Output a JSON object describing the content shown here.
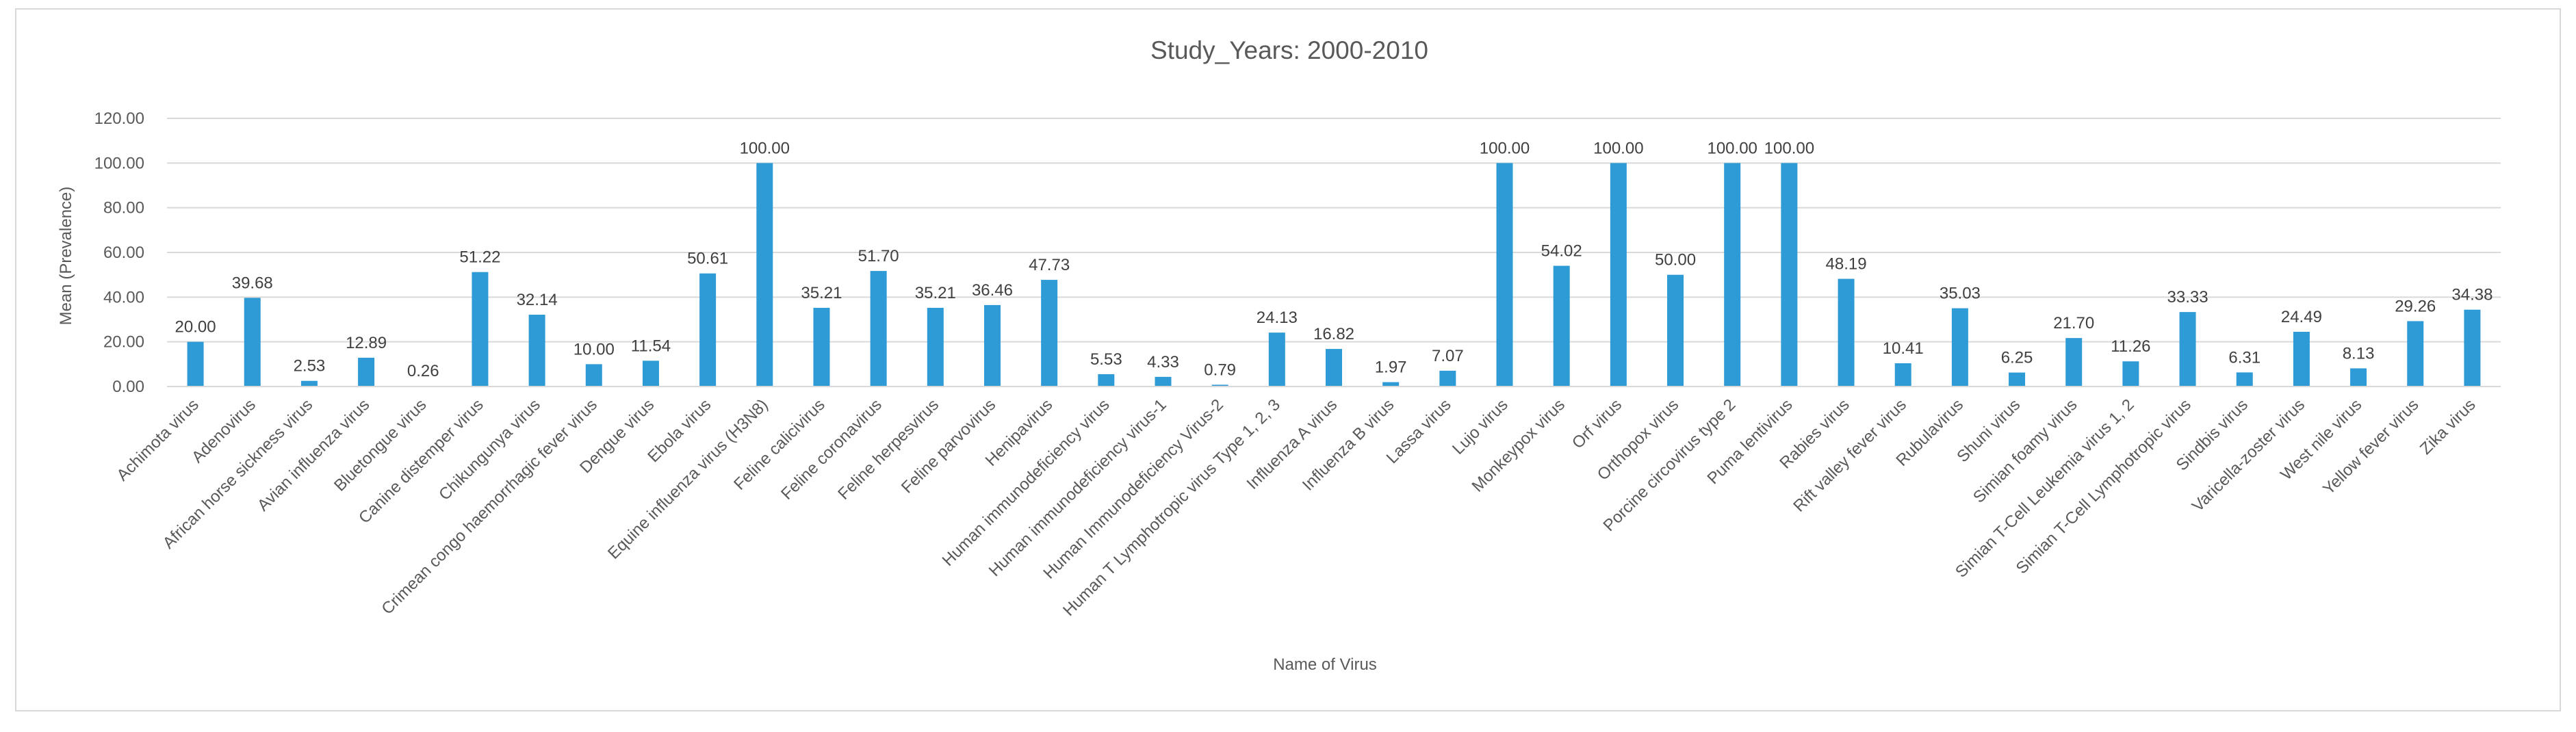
{
  "chart_data": {
    "type": "bar",
    "title": "Study_Years: 2000-2010",
    "xlabel": "Name of Virus",
    "ylabel": "Mean (Prevalence)",
    "ylim": [
      0,
      120
    ],
    "yticks": [
      "0.00",
      "20.00",
      "40.00",
      "60.00",
      "80.00",
      "100.00",
      "120.00"
    ],
    "grid": true,
    "bar_color": "#2e9bd6",
    "categories": [
      "Achimota virus",
      "Adenovirus",
      "African horse sickness virus",
      "Avian influenza virus",
      "Bluetongue virus",
      "Canine distemper virus",
      "Chikungunya virus",
      "Crimean congo haemorrhagic fever virus",
      "Dengue virus",
      "Ebola virus",
      "Equine influenza virus (H3N8)",
      "Feline calicivirus",
      "Feline coronavirus",
      "Feline herpesvirus",
      "Feline parvovirus",
      "Henipavirus",
      "Human immunodeficiency virus",
      "Human immunodeficiency virus-1",
      "Human Immunodeficiency Virus-2",
      "Human T Lymphotropic virus Type 1, 2, 3",
      "Influenza A virus",
      "Influenza B virus",
      "Lassa virus",
      "Lujo virus",
      "Monkeypox virus",
      "Orf virus",
      "Orthopox virus",
      "Porcine circovirus type 2",
      "Puma lentivirus",
      "Rabies virus",
      "Rift valley fever virus",
      "Rubulavirus",
      "Shuni virus",
      "Simian foamy virus",
      "Simian T-Cell Leukemia virus 1, 2",
      "Simian T-Cell Lymphotropic virus",
      "Sindbis virus",
      "Varicella-zoster virus",
      "West nile virus",
      "Yellow fever virus",
      "Zika virus"
    ],
    "values": [
      20.0,
      39.68,
      2.53,
      12.89,
      0.26,
      51.22,
      32.14,
      10.0,
      11.54,
      50.61,
      100.0,
      35.21,
      51.7,
      35.21,
      36.46,
      47.73,
      5.53,
      4.33,
      0.79,
      24.13,
      16.82,
      1.97,
      7.07,
      100.0,
      54.02,
      100.0,
      50.0,
      100.0,
      100.0,
      48.19,
      10.41,
      35.03,
      6.25,
      21.7,
      11.26,
      33.33,
      6.31,
      24.49,
      8.13,
      29.26,
      34.38
    ],
    "data_labels": [
      "20.00",
      "39.68",
      "2.53",
      "12.89",
      "0.26",
      "51.22",
      "32.14",
      "10.00",
      "11.54",
      "50.61",
      "100.00",
      "35.21",
      "51.70",
      "35.21",
      "36.46",
      "47.73",
      "5.53",
      "4.33",
      "0.79",
      "24.13",
      "16.82",
      "1.97",
      "7.07",
      "100.00",
      "54.02",
      "100.00",
      "50.00",
      "100.00",
      "100.00",
      "48.19",
      "10.41",
      "35.03",
      "6.25",
      "21.70",
      "11.26",
      "33.33",
      "6.31",
      "24.49",
      "8.13",
      "29.26",
      "34.38"
    ]
  }
}
